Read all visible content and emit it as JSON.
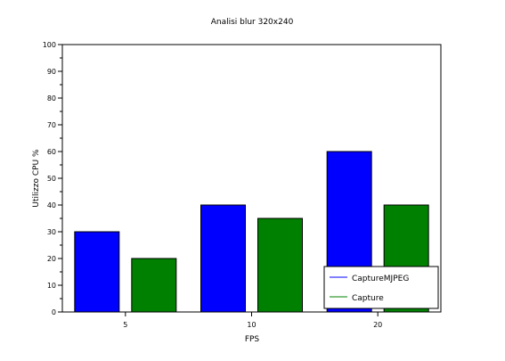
{
  "chart_data": {
    "type": "bar",
    "title": "Analisi blur 320x240",
    "xlabel": "FPS",
    "ylabel": "Utilizzo CPU %",
    "ylim": [
      0,
      100
    ],
    "yticks": [
      0,
      10,
      20,
      30,
      40,
      50,
      60,
      70,
      80,
      90,
      100
    ],
    "categories": [
      "5",
      "10",
      "20"
    ],
    "series": [
      {
        "name": "CaptureMJPEG",
        "color": "#0000ff",
        "values": [
          30,
          40,
          60
        ]
      },
      {
        "name": "Capture",
        "color": "#008000",
        "values": [
          20,
          35,
          40
        ]
      }
    ],
    "legend_position": "bottom-right",
    "grid": false
  }
}
